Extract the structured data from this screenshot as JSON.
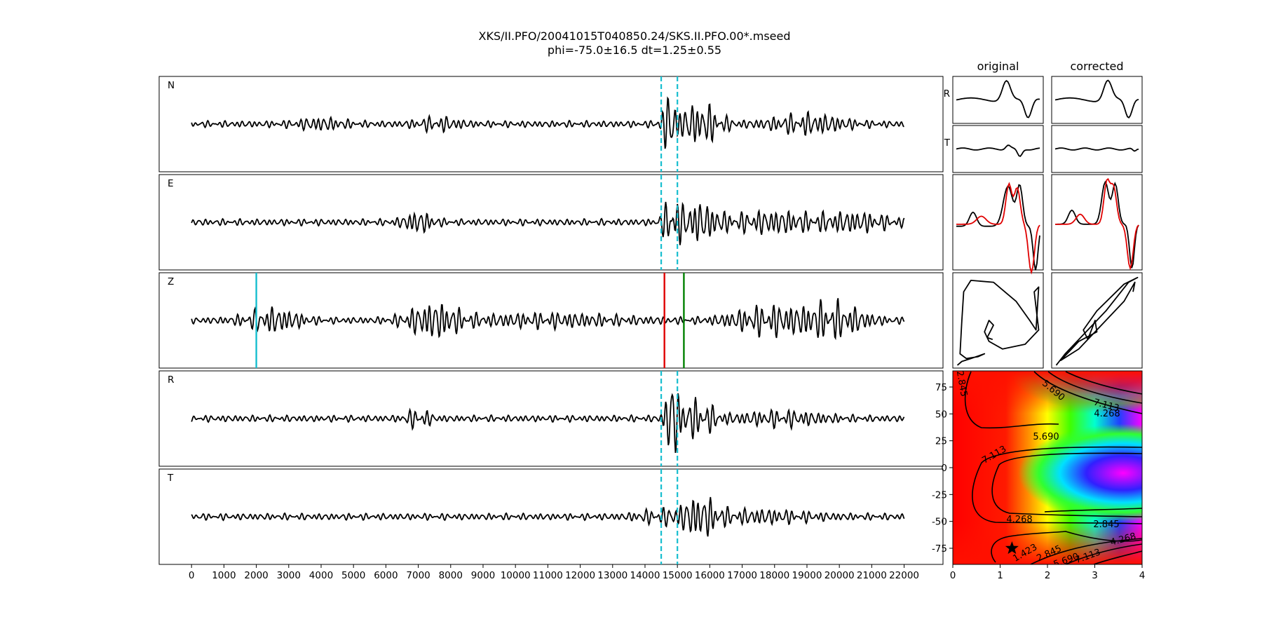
{
  "figure": {
    "title_line1": "XKS/II.PFO/20041015T040850.24/SKS.II.PFO.00*.mseed",
    "title_line2": "phi=-75.0±16.5 dt=1.25±0.55"
  },
  "chart_data": [
    {
      "type": "line",
      "description_kind": "seismogram traces",
      "panels": [
        "N",
        "E",
        "Z",
        "R",
        "T"
      ],
      "xlim": [
        -1000,
        23200
      ],
      "x_ticks": [
        0,
        1000,
        2000,
        3000,
        4000,
        5000,
        6000,
        7000,
        8000,
        9000,
        10000,
        11000,
        12000,
        13000,
        14000,
        15000,
        16000,
        17000,
        18000,
        19000,
        20000,
        21000,
        22000
      ],
      "trace_start": 0,
      "trace_end": 22000,
      "window_lines": {
        "panels": [
          "N",
          "E",
          "R",
          "T"
        ],
        "x": [
          14500,
          15000
        ],
        "color": "#17becf",
        "style": "dashed"
      },
      "z_markers": [
        {
          "x": 2000,
          "color": "#17becf"
        },
        {
          "x": 14600,
          "color": "#e00000"
        },
        {
          "x": 15200,
          "color": "#008000"
        }
      ],
      "trace_color": "#000000"
    },
    {
      "type": "line",
      "description_kind": "particle motion and component panels",
      "column_titles": [
        "original",
        "corrected"
      ],
      "row_labels": [
        "R",
        "T"
      ],
      "series_colors": [
        "#000000",
        "#e00000"
      ]
    },
    {
      "type": "heatmap",
      "xlim": [
        0,
        4
      ],
      "ylim": [
        -90,
        90
      ],
      "x_ticks": [
        0,
        1,
        2,
        3,
        4
      ],
      "y_ticks": [
        75,
        50,
        25,
        0,
        -25,
        -50,
        -75
      ],
      "contour_labels": [
        {
          "text": "2.845"
        },
        {
          "text": "5.690"
        },
        {
          "text": "7.113"
        },
        {
          "text": "4.268"
        },
        {
          "text": "5.690"
        },
        {
          "text": "7.113"
        },
        {
          "text": "4.268"
        },
        {
          "text": "2.845"
        },
        {
          "text": "4.268"
        },
        {
          "text": "1.423"
        },
        {
          "text": "2.845"
        },
        {
          "text": "5.690"
        },
        {
          "text": "7.113"
        }
      ],
      "best_fit": {
        "phi": -75.0,
        "dt": 1.25
      },
      "colormap": "hsv"
    }
  ]
}
